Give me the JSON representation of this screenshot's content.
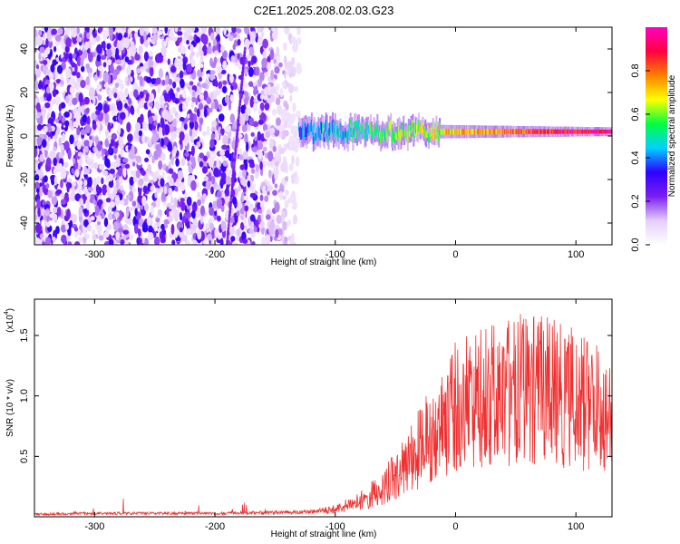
{
  "figure_title": "C2E1.2025.208.02.03.G23",
  "chart_data": [
    {
      "type": "heatmap",
      "xlabel": "Height of straight line (km)",
      "ylabel": "Frequency (Hz)",
      "xlim": [
        -350,
        130
      ],
      "ylim": [
        -50,
        50
      ],
      "x_ticks": [
        -300,
        -200,
        -100,
        0,
        100
      ],
      "y_ticks": [
        -40,
        -20,
        0,
        20,
        40
      ],
      "colorbar": {
        "label": "Normalized spectral amplitude",
        "range": [
          0.0,
          1.0
        ],
        "ticks": [
          0.0,
          0.2,
          0.4,
          0.6,
          0.8
        ],
        "colormap": [
          "#ffffff",
          "#e6cdfa",
          "#7a1ff0",
          "#2f00ff",
          "#00d0ff",
          "#00ff40",
          "#ffff00",
          "#ff8000",
          "#ff0040",
          "#ff00c0"
        ]
      },
      "features": [
        {
          "kind": "diffuse noise",
          "x_range": [
            -350,
            -130
          ],
          "y_range": [
            -50,
            50
          ],
          "amplitude": 0.12
        },
        {
          "kind": "steep streak",
          "points": [
            [
              -190,
              -50
            ],
            [
              -175,
              40
            ]
          ],
          "amplitude": 0.2
        },
        {
          "kind": "signal band",
          "x_range": [
            -130,
            130
          ],
          "center_hz": 2,
          "halfwidth_hz": 4,
          "amplitude_start": 0.35,
          "amplitude_end": 0.95
        }
      ]
    },
    {
      "type": "line",
      "xlabel": "Height of straight line (km)",
      "ylabel": "SNR (10 * v/v)",
      "y_multiplier": "(x10",
      "y_multiplier_exp": "4",
      "xlim": [
        -350,
        130
      ],
      "ylim": [
        0,
        1.8
      ],
      "x_ticks": [
        -300,
        -200,
        -100,
        0,
        100
      ],
      "y_ticks": [
        0.5,
        1.0,
        1.5
      ],
      "y_tick_labels": [
        "0.5",
        "1.0",
        "1.5"
      ],
      "color": "#f03030",
      "envelope": {
        "x": [
          -350,
          -300,
          -250,
          -200,
          -150,
          -120,
          -100,
          -80,
          -60,
          -40,
          -20,
          0,
          20,
          40,
          60,
          80,
          100,
          120,
          130
        ],
        "y": [
          0.03,
          0.04,
          0.04,
          0.04,
          0.05,
          0.06,
          0.1,
          0.2,
          0.4,
          0.7,
          1.1,
          1.45,
          1.6,
          1.68,
          1.68,
          1.65,
          1.55,
          1.45,
          1.3
        ]
      }
    }
  ]
}
